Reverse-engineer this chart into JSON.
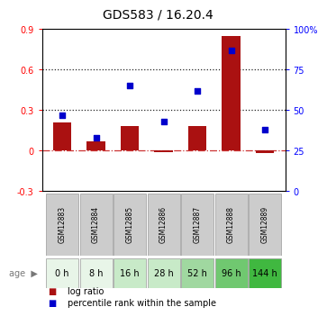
{
  "title": "GDS583 / 16.20.4",
  "samples": [
    "GSM12883",
    "GSM12884",
    "GSM12885",
    "GSM12886",
    "GSM12887",
    "GSM12888",
    "GSM12889"
  ],
  "ages": [
    "0 h",
    "8 h",
    "16 h",
    "28 h",
    "52 h",
    "96 h",
    "144 h"
  ],
  "age_colors": [
    "#e8f5e8",
    "#e8f5e8",
    "#c8eac8",
    "#c8eac8",
    "#a0d8a0",
    "#70c870",
    "#40b840"
  ],
  "log_ratio": [
    0.21,
    0.07,
    0.18,
    -0.01,
    0.18,
    0.85,
    -0.02
  ],
  "percentile_rank": [
    47,
    33,
    65,
    43,
    62,
    87,
    38
  ],
  "bar_color": "#aa1111",
  "dot_color": "#0000cc",
  "ylim_left": [
    -0.3,
    0.9
  ],
  "ylim_right": [
    0,
    100
  ],
  "yticks_left": [
    -0.3,
    0.0,
    0.3,
    0.6,
    0.9
  ],
  "ytick_labels_left": [
    "-0.3",
    "0",
    "0.3",
    "0.6",
    "0.9"
  ],
  "yticks_right": [
    0,
    25,
    50,
    75,
    100
  ],
  "ytick_labels_right": [
    "0",
    "25",
    "50",
    "75",
    "100%"
  ],
  "hlines": [
    0.3,
    0.6
  ],
  "zero_line_color": "#cc3333",
  "hline_color": "#222222",
  "title_fontsize": 10,
  "gsm_box_color": "#cccccc",
  "legend_labels": [
    "log ratio",
    "percentile rank within the sample"
  ]
}
